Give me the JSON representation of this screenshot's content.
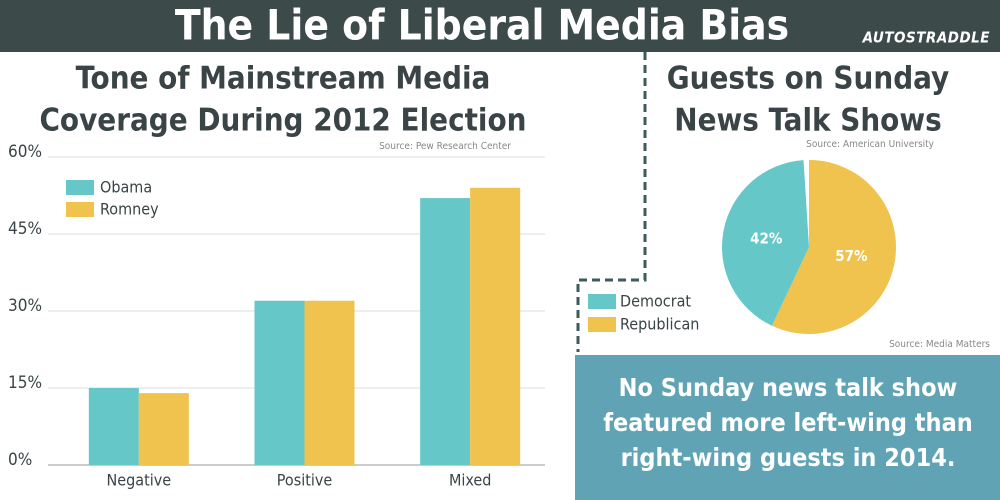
{
  "header": {
    "title": "The Lie of Liberal Media Bias",
    "brand": "AUTOSTRADDLE"
  },
  "chart_data": [
    {
      "type": "bar",
      "title": [
        "Tone of Mainstream Media",
        "Coverage During 2012 Election"
      ],
      "source": "Source: Pew Research Center",
      "categories": [
        "Negative",
        "Positive",
        "Mixed"
      ],
      "series": [
        {
          "name": "Obama",
          "color": "#66c7c9",
          "values": [
            15,
            32,
            52
          ]
        },
        {
          "name": "Romney",
          "color": "#f0c24e",
          "values": [
            14,
            32,
            54
          ]
        }
      ],
      "ylim": [
        0,
        60
      ],
      "yticks": [
        {
          "value": 0,
          "label": "0%"
        },
        {
          "value": 15,
          "label": "15%"
        },
        {
          "value": 30,
          "label": "30%"
        },
        {
          "value": 45,
          "label": "45%"
        },
        {
          "value": 60,
          "label": "60%"
        }
      ],
      "grid": true,
      "legend": "upper left"
    },
    {
      "type": "pie",
      "title": [
        "Guests on Sunday",
        "News Talk Shows"
      ],
      "source": "Source: American University",
      "categories": [
        "Republican",
        "Democrat"
      ],
      "values": [
        57,
        42
      ],
      "value_labels": [
        "57%",
        "42%"
      ],
      "colors": [
        "#f0c24e",
        "#66c7c9"
      ],
      "legend_order": [
        "Democrat",
        "Republican"
      ]
    }
  ],
  "callout": {
    "source": "Source: Media Matters",
    "lines": [
      "No Sunday news talk show",
      "featured more left-wing than",
      "right-wing guests in 2014."
    ]
  }
}
